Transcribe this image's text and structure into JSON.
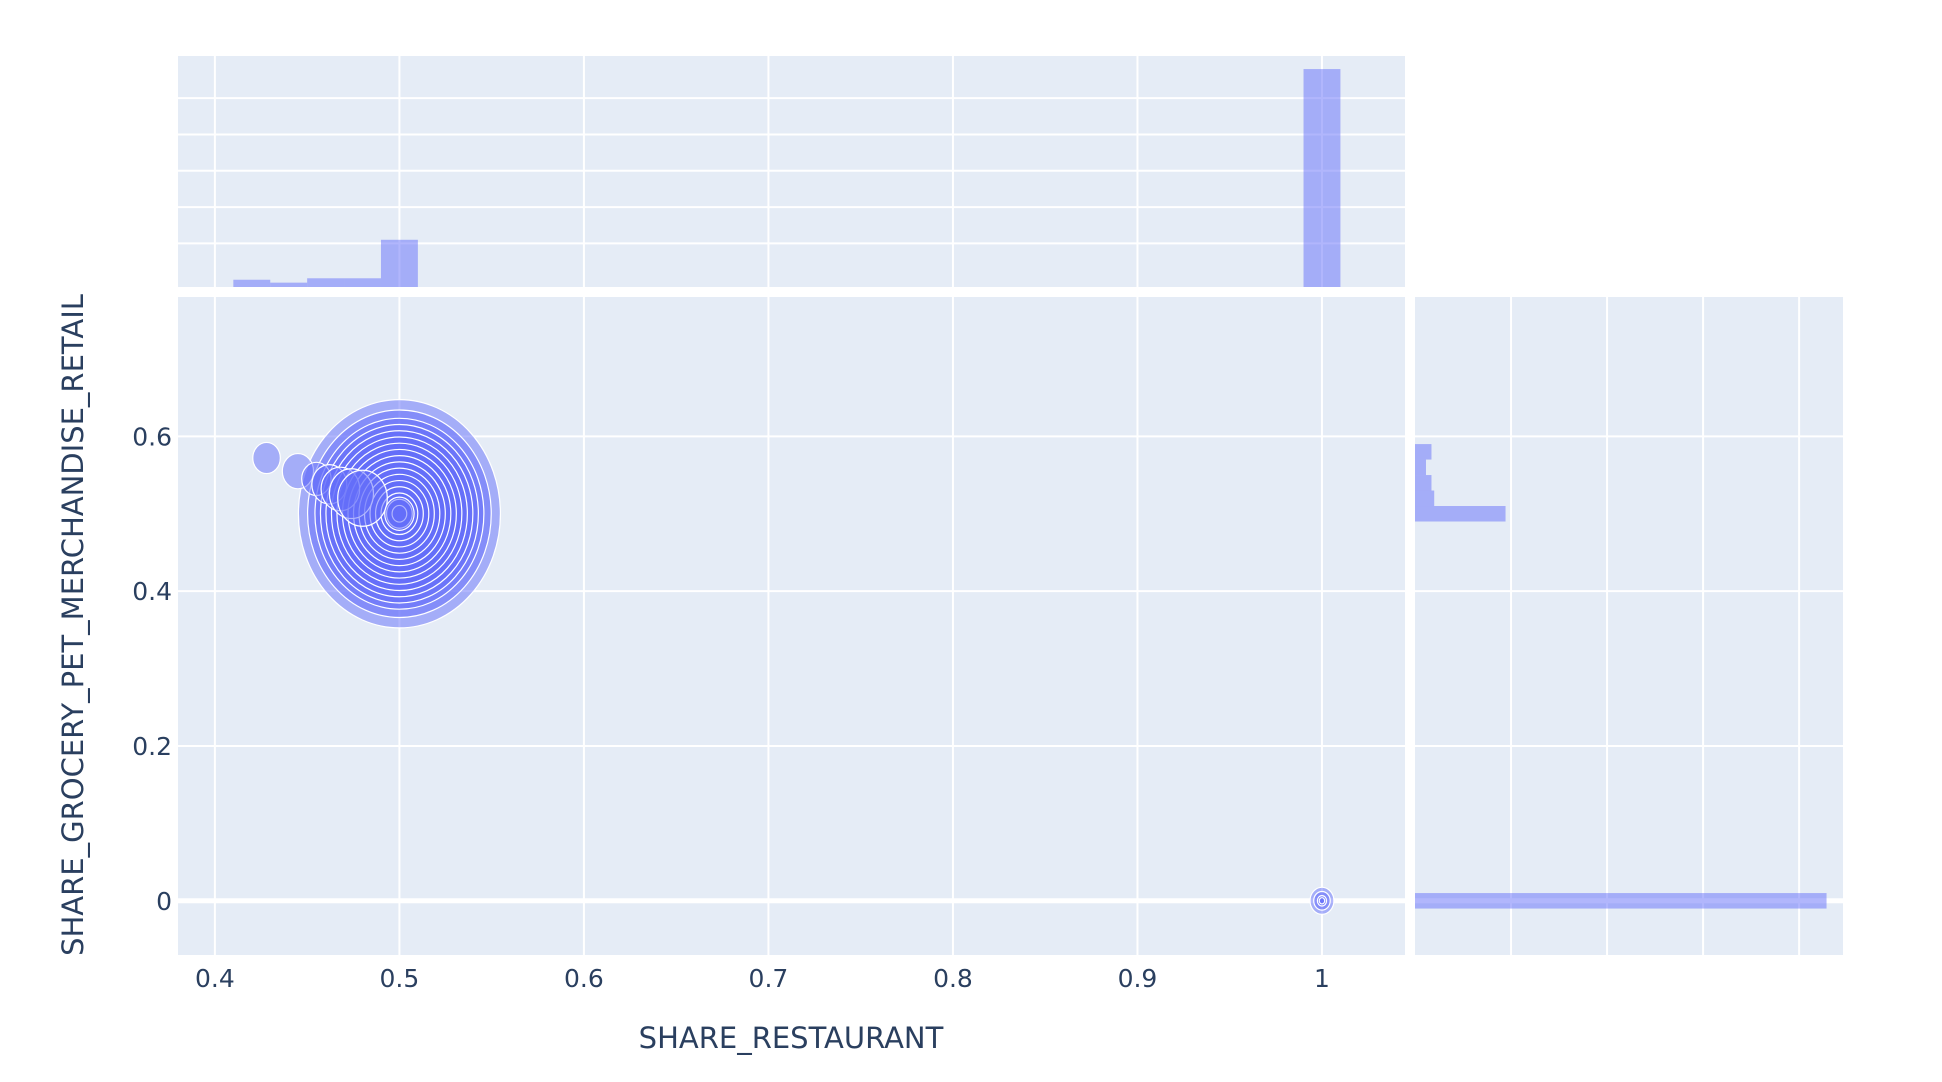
{
  "colors": {
    "marker": "#636efa",
    "panel_background": "#e5ecf6",
    "gridline": "#ffffff",
    "text": "#2a3f5f"
  },
  "chart_data": {
    "type": "scatter",
    "subtype": "bubble scatter with marginal histograms",
    "title": "",
    "xlabel": "SHARE_RESTAURANT",
    "ylabel": "SHARE_GROCERY_PET_MERCHANDISE_RETAIL",
    "xlim": [
      0.38,
      1.045
    ],
    "ylim": [
      -0.07,
      0.78
    ],
    "x_ticks": [
      0.4,
      0.5,
      0.6,
      0.7,
      0.8,
      0.9,
      1
    ],
    "x_tick_labels": [
      "0.4",
      "0.5",
      "0.6",
      "0.7",
      "0.8",
      "0.9",
      "1"
    ],
    "y_ticks": [
      0,
      0.2,
      0.4,
      0.6
    ],
    "y_tick_labels": [
      "0",
      "0.2",
      "0.4",
      "0.6"
    ],
    "grid": true,
    "legend": "none",
    "points": [
      {
        "x": 0.5,
        "y": 0.5,
        "size": 110
      },
      {
        "x": 0.5,
        "y": 0.5,
        "size": 100
      },
      {
        "x": 0.5,
        "y": 0.5,
        "size": 92
      },
      {
        "x": 0.5,
        "y": 0.5,
        "size": 86
      },
      {
        "x": 0.5,
        "y": 0.5,
        "size": 80
      },
      {
        "x": 0.5,
        "y": 0.5,
        "size": 74
      },
      {
        "x": 0.5,
        "y": 0.5,
        "size": 68
      },
      {
        "x": 0.5,
        "y": 0.5,
        "size": 62
      },
      {
        "x": 0.5,
        "y": 0.5,
        "size": 56
      },
      {
        "x": 0.5,
        "y": 0.5,
        "size": 50
      },
      {
        "x": 0.5,
        "y": 0.5,
        "size": 44
      },
      {
        "x": 0.5,
        "y": 0.5,
        "size": 38
      },
      {
        "x": 0.5,
        "y": 0.5,
        "size": 32
      },
      {
        "x": 0.5,
        "y": 0.5,
        "size": 26
      },
      {
        "x": 0.5,
        "y": 0.5,
        "size": 20
      },
      {
        "x": 0.5,
        "y": 0.5,
        "size": 14
      },
      {
        "x": 0.5,
        "y": 0.5,
        "size": 8
      },
      {
        "x": 0.428,
        "y": 0.572,
        "size": 15
      },
      {
        "x": 0.445,
        "y": 0.555,
        "size": 17
      },
      {
        "x": 0.455,
        "y": 0.545,
        "size": 16
      },
      {
        "x": 0.462,
        "y": 0.538,
        "size": 19
      },
      {
        "x": 0.468,
        "y": 0.532,
        "size": 21
      },
      {
        "x": 0.474,
        "y": 0.526,
        "size": 24
      },
      {
        "x": 0.48,
        "y": 0.52,
        "size": 27
      },
      {
        "x": 0.5,
        "y": 0.5,
        "size": 16
      },
      {
        "x": 1,
        "y": 0,
        "size": 13
      },
      {
        "x": 1,
        "y": 0,
        "size": 9
      },
      {
        "x": 1,
        "y": 0,
        "size": 5
      },
      {
        "x": 1,
        "y": 0,
        "size": 3
      }
    ],
    "x_histogram": {
      "bin_width": 0.02,
      "max_count": 30,
      "bins": [
        {
          "x0": 0.41,
          "x1": 0.43,
          "count": 1
        },
        {
          "x0": 0.43,
          "x1": 0.45,
          "count": 0.6
        },
        {
          "x0": 0.45,
          "x1": 0.47,
          "count": 1.2
        },
        {
          "x0": 0.47,
          "x1": 0.49,
          "count": 1.2
        },
        {
          "x0": 0.49,
          "x1": 0.51,
          "count": 6.5
        },
        {
          "x0": 0.99,
          "x1": 1.01,
          "count": 30
        }
      ]
    },
    "y_histogram": {
      "bin_width": 0.02,
      "max_count": 30,
      "bins": [
        {
          "y0": -0.01,
          "y1": 0.01,
          "count": 30
        },
        {
          "y0": 0.49,
          "y1": 0.51,
          "count": 6.6
        },
        {
          "y0": 0.51,
          "y1": 0.53,
          "count": 1.4
        },
        {
          "y0": 0.53,
          "y1": 0.55,
          "count": 1.2
        },
        {
          "y0": 0.55,
          "y1": 0.57,
          "count": 0.8
        },
        {
          "y0": 0.57,
          "y1": 0.59,
          "count": 1.2
        }
      ]
    }
  }
}
